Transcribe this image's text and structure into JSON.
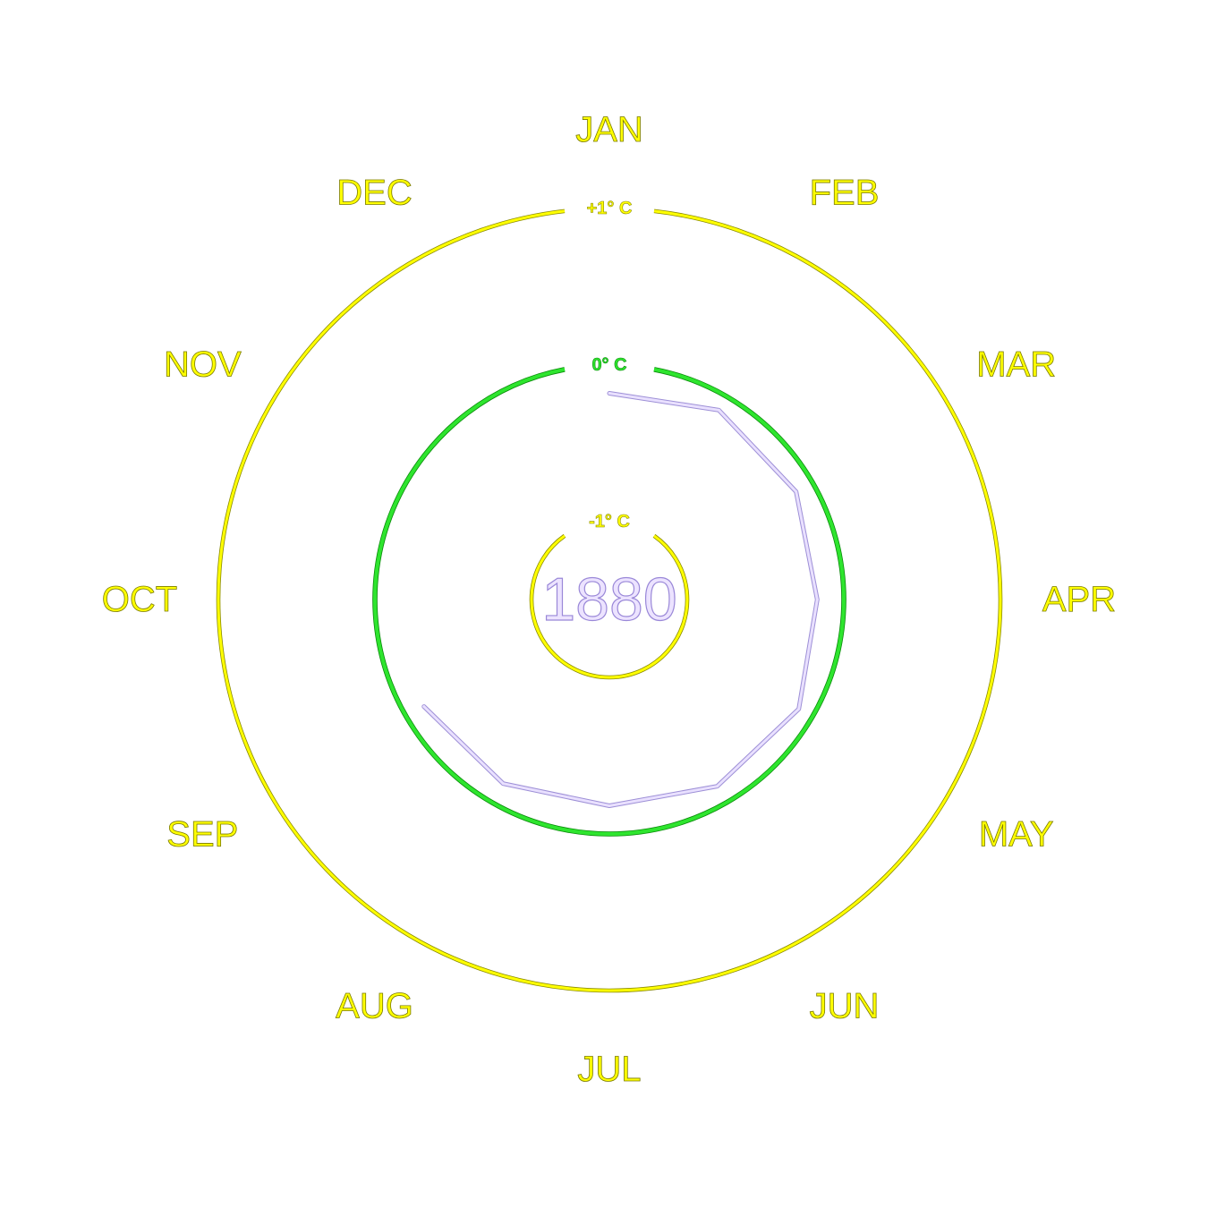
{
  "chart_data": {
    "type": "polar-line",
    "title": "",
    "year": "1880",
    "months": [
      "JAN",
      "FEB",
      "MAR",
      "APR",
      "MAY",
      "JUN",
      "JUL",
      "AUG",
      "SEP",
      "OCT",
      "NOV",
      "DEC"
    ],
    "series": [
      {
        "name": "1880",
        "months": [
          "JAN",
          "FEB",
          "MAR",
          "APR",
          "MAY",
          "JUN",
          "JUL",
          "AUG",
          "SEP"
        ],
        "values": [
          -0.18,
          -0.1,
          -0.12,
          -0.17,
          -0.1,
          -0.12,
          -0.18,
          -0.14,
          -0.13
        ],
        "color": "#e9e0ff",
        "outline": "#9d8fd6"
      }
    ],
    "reference_rings": [
      {
        "value": -1,
        "label": "-1° C",
        "color": "#ffff00",
        "outline": "#8a8a00"
      },
      {
        "value": 0,
        "label": "0° C",
        "color": "#2ee52e",
        "outline": "#0a8a0a"
      },
      {
        "value": 1,
        "label": "+1° C",
        "color": "#ffff00",
        "outline": "#8a8a00"
      }
    ],
    "radial_range": [
      -1.5,
      1.5
    ],
    "units": "° C"
  }
}
